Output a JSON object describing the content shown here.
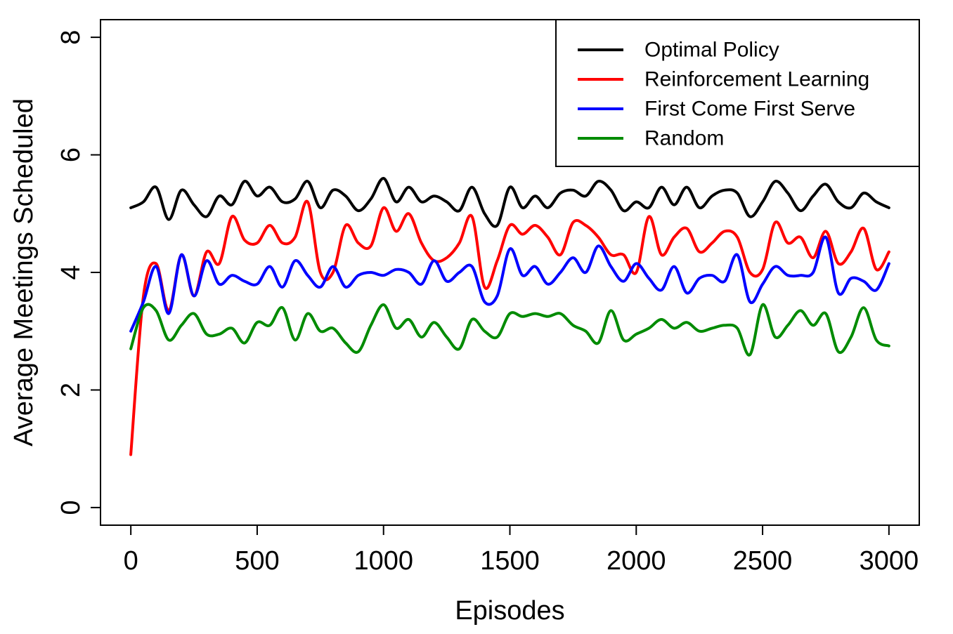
{
  "chart_data": {
    "type": "line",
    "title": "",
    "xlabel": "Episodes",
    "ylabel": "Average Meetings Scheduled",
    "xlim": [
      -120,
      3120
    ],
    "ylim": [
      -0.3,
      8.3
    ],
    "xticks": [
      0,
      500,
      1000,
      1500,
      2000,
      2500,
      3000
    ],
    "yticks": [
      0,
      2,
      4,
      6,
      8
    ],
    "xtick_labels": [
      "0",
      "500",
      "1000",
      "1500",
      "2000",
      "2500",
      "3000"
    ],
    "ytick_labels": [
      "0",
      "2",
      "4",
      "6",
      "8"
    ],
    "grid": false,
    "legend_position": "top-right",
    "x": [
      0,
      50,
      100,
      150,
      200,
      250,
      300,
      350,
      400,
      450,
      500,
      550,
      600,
      650,
      700,
      750,
      800,
      850,
      900,
      950,
      1000,
      1050,
      1100,
      1150,
      1200,
      1250,
      1300,
      1350,
      1400,
      1450,
      1500,
      1550,
      1600,
      1650,
      1700,
      1750,
      1800,
      1850,
      1900,
      1950,
      2000,
      2050,
      2100,
      2150,
      2200,
      2250,
      2300,
      2350,
      2400,
      2450,
      2500,
      2550,
      2600,
      2650,
      2700,
      2750,
      2800,
      2850,
      2900,
      2950,
      3000
    ],
    "series": [
      {
        "name": "Optimal Policy",
        "color": "#000000",
        "values": [
          5.1,
          5.2,
          5.45,
          4.9,
          5.4,
          5.15,
          4.95,
          5.3,
          5.15,
          5.55,
          5.3,
          5.45,
          5.2,
          5.25,
          5.55,
          5.1,
          5.4,
          5.3,
          5.05,
          5.25,
          5.6,
          5.2,
          5.45,
          5.2,
          5.3,
          5.2,
          5.05,
          5.45,
          5.0,
          4.8,
          5.45,
          5.1,
          5.3,
          5.1,
          5.35,
          5.4,
          5.3,
          5.55,
          5.4,
          5.05,
          5.2,
          5.1,
          5.45,
          5.15,
          5.45,
          5.1,
          5.3,
          5.4,
          5.35,
          4.95,
          5.2,
          5.55,
          5.35,
          5.05,
          5.3,
          5.5,
          5.2,
          5.1,
          5.35,
          5.2,
          5.1
        ]
      },
      {
        "name": "Reinforcement Learning",
        "color": "#ff0000",
        "values": [
          0.9,
          3.6,
          4.15,
          3.35,
          4.3,
          3.6,
          4.35,
          4.15,
          4.95,
          4.55,
          4.5,
          4.8,
          4.5,
          4.6,
          5.2,
          4.0,
          4.0,
          4.8,
          4.5,
          4.45,
          5.1,
          4.7,
          5.0,
          4.5,
          4.2,
          4.25,
          4.5,
          4.95,
          3.75,
          4.2,
          4.8,
          4.65,
          4.8,
          4.6,
          4.3,
          4.85,
          4.8,
          4.6,
          4.3,
          4.3,
          4.0,
          4.95,
          4.3,
          4.6,
          4.75,
          4.35,
          4.5,
          4.7,
          4.6,
          4.0,
          4.05,
          4.85,
          4.5,
          4.6,
          4.25,
          4.7,
          4.15,
          4.35,
          4.75,
          4.05,
          4.35
        ]
      },
      {
        "name": "First Come First Serve",
        "color": "#0000ff",
        "values": [
          3.0,
          3.5,
          4.1,
          3.3,
          4.3,
          3.6,
          4.2,
          3.8,
          3.95,
          3.85,
          3.8,
          4.1,
          3.75,
          4.2,
          3.95,
          3.75,
          4.1,
          3.75,
          3.95,
          4.0,
          3.95,
          4.05,
          4.0,
          3.8,
          4.2,
          3.85,
          4.0,
          4.1,
          3.5,
          3.6,
          4.4,
          3.95,
          4.1,
          3.8,
          4.0,
          4.25,
          4.0,
          4.45,
          4.1,
          3.85,
          4.15,
          3.9,
          3.7,
          4.1,
          3.65,
          3.9,
          3.95,
          3.85,
          4.3,
          3.5,
          3.8,
          4.1,
          3.95,
          3.95,
          4.0,
          4.6,
          3.65,
          3.9,
          3.85,
          3.7,
          4.15
        ]
      },
      {
        "name": "Random",
        "color": "#008b00",
        "values": [
          2.7,
          3.4,
          3.35,
          2.85,
          3.1,
          3.3,
          2.95,
          2.95,
          3.05,
          2.8,
          3.15,
          3.1,
          3.4,
          2.85,
          3.3,
          3.0,
          3.05,
          2.8,
          2.65,
          3.1,
          3.45,
          3.05,
          3.2,
          2.9,
          3.15,
          2.9,
          2.7,
          3.2,
          3.0,
          2.9,
          3.3,
          3.25,
          3.3,
          3.25,
          3.3,
          3.1,
          3.0,
          2.8,
          3.35,
          2.85,
          2.95,
          3.05,
          3.2,
          3.05,
          3.15,
          3.0,
          3.05,
          3.1,
          3.05,
          2.6,
          3.45,
          2.9,
          3.1,
          3.35,
          3.1,
          3.3,
          2.65,
          2.9,
          3.4,
          2.85,
          2.75
        ]
      }
    ]
  }
}
